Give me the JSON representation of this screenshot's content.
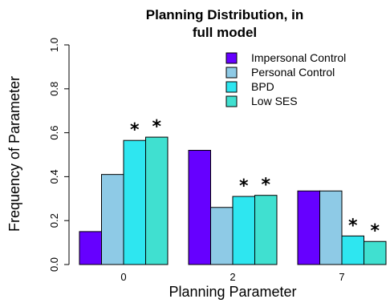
{
  "chart_data": {
    "type": "bar",
    "title_lines": [
      "Planning Distribution, in",
      "full model"
    ],
    "xlabel": "Planning Parameter",
    "ylabel": "Frequency of Parameter",
    "categories": [
      "0",
      "2",
      "7"
    ],
    "ylim": [
      0,
      1.0
    ],
    "yticks": [
      "0.0",
      "0.2",
      "0.4",
      "0.6",
      "0.8",
      "1.0"
    ],
    "series": [
      {
        "name": "Impersonal Control",
        "color": "#6600ff",
        "values": [
          0.15,
          0.52,
          0.335
        ]
      },
      {
        "name": "Personal Control",
        "color": "#8ecae6",
        "values": [
          0.41,
          0.26,
          0.335
        ]
      },
      {
        "name": "BPD",
        "color": "#2ee6f0",
        "values": [
          0.565,
          0.31,
          0.13
        ]
      },
      {
        "name": "Low SES",
        "color": "#40e0d0",
        "values": [
          0.58,
          0.315,
          0.105
        ]
      }
    ],
    "significance_marker": "*",
    "significant": [
      [
        false,
        false,
        true,
        true
      ],
      [
        false,
        false,
        true,
        true
      ],
      [
        false,
        false,
        true,
        true
      ]
    ],
    "legend_position": "top-right",
    "grid": false
  }
}
